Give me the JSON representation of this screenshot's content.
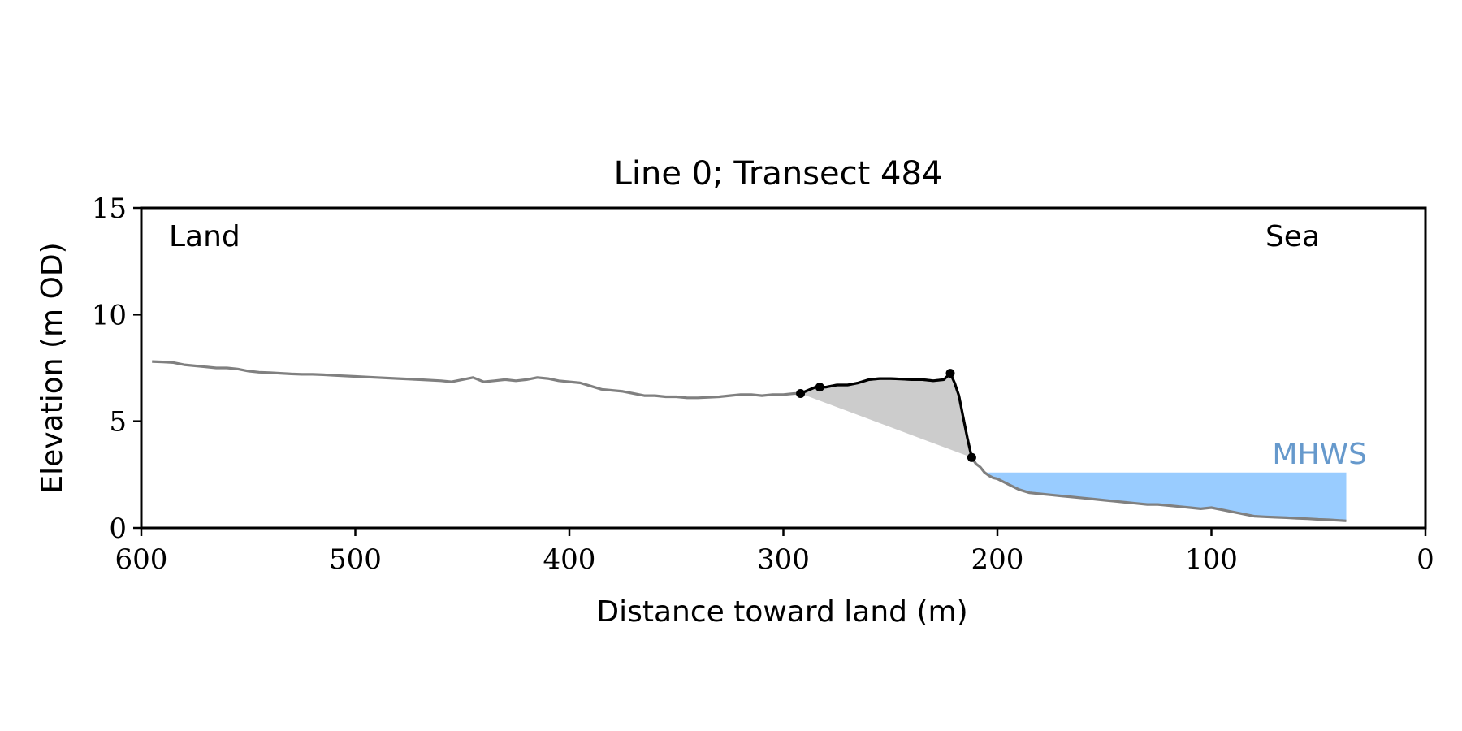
{
  "chart_data": {
    "type": "line",
    "title": "Line 0; Transect 484",
    "xlabel": "Distance toward land (m)",
    "ylabel": "Elevation (m OD)",
    "xlim": [
      600,
      0
    ],
    "ylim": [
      0,
      15
    ],
    "xticks": [
      600,
      500,
      400,
      300,
      200,
      100,
      0
    ],
    "yticks": [
      0,
      5,
      10,
      15
    ],
    "grid": false,
    "legend": "none",
    "annotations": {
      "land": "Land",
      "sea": "Sea",
      "mhws": "MHWS"
    },
    "mhws": {
      "level": 2.6,
      "x_from": 205,
      "x_to": 37
    },
    "colors": {
      "profile": "#808080",
      "dune": "#000000",
      "dune_fill": "#cccccc",
      "water": "#99ccff",
      "mhws_text": "#6699cc",
      "axes": "#000000"
    },
    "series": [
      {
        "role": "profile",
        "x": [
          595,
          590,
          585,
          580,
          575,
          570,
          565,
          560,
          555,
          550,
          545,
          540,
          535,
          530,
          525,
          520,
          515,
          510,
          500,
          490,
          480,
          470,
          460,
          455,
          450,
          445,
          440,
          435,
          430,
          425,
          420,
          415,
          410,
          405,
          400,
          395,
          390,
          385,
          380,
          375,
          370,
          365,
          360,
          355,
          350,
          345,
          340,
          335,
          330,
          325,
          320,
          315,
          310,
          305,
          300,
          295,
          292,
          285,
          280,
          275,
          270,
          265,
          260,
          255,
          250,
          245,
          240,
          235,
          230,
          225,
          222,
          220,
          218,
          216,
          214,
          212,
          210,
          208,
          206,
          204,
          202,
          200,
          198,
          195,
          190,
          185,
          180,
          175,
          170,
          165,
          160,
          155,
          150,
          145,
          140,
          135,
          130,
          125,
          120,
          115,
          110,
          105,
          100,
          95,
          90,
          85,
          80,
          75,
          70,
          65,
          60,
          55,
          50,
          45,
          40,
          37
        ],
        "y": [
          7.8,
          7.78,
          7.75,
          7.65,
          7.6,
          7.55,
          7.5,
          7.5,
          7.45,
          7.35,
          7.3,
          7.28,
          7.25,
          7.22,
          7.2,
          7.2,
          7.18,
          7.15,
          7.1,
          7.05,
          7.0,
          6.95,
          6.9,
          6.85,
          6.95,
          7.05,
          6.85,
          6.9,
          6.95,
          6.9,
          6.95,
          7.05,
          7.0,
          6.9,
          6.85,
          6.8,
          6.65,
          6.5,
          6.45,
          6.4,
          6.3,
          6.2,
          6.2,
          6.15,
          6.15,
          6.1,
          6.1,
          6.12,
          6.15,
          6.2,
          6.25,
          6.25,
          6.2,
          6.25,
          6.25,
          6.3,
          6.3,
          6.6,
          6.6,
          6.7,
          6.7,
          6.8,
          6.95,
          7.0,
          7.0,
          6.98,
          6.95,
          6.95,
          6.9,
          6.95,
          7.25,
          6.8,
          6.2,
          5.2,
          4.2,
          3.3,
          3.0,
          2.85,
          2.6,
          2.45,
          2.35,
          2.3,
          2.2,
          2.05,
          1.8,
          1.65,
          1.6,
          1.55,
          1.5,
          1.45,
          1.4,
          1.35,
          1.3,
          1.25,
          1.2,
          1.15,
          1.1,
          1.1,
          1.05,
          1.0,
          0.95,
          0.9,
          0.95,
          0.85,
          0.75,
          0.65,
          0.55,
          0.52,
          0.5,
          0.48,
          0.45,
          0.43,
          0.4,
          0.38,
          0.35,
          0.33
        ]
      },
      {
        "role": "dune",
        "x": [
          292,
          285,
          280,
          275,
          270,
          265,
          260,
          255,
          250,
          245,
          240,
          235,
          230,
          225,
          222,
          220,
          218,
          216,
          214,
          212
        ],
        "y": [
          6.3,
          6.6,
          6.6,
          6.7,
          6.7,
          6.8,
          6.95,
          7.0,
          7.0,
          6.98,
          6.95,
          6.95,
          6.9,
          6.95,
          7.25,
          6.8,
          6.2,
          5.2,
          4.2,
          3.3
        ]
      }
    ],
    "markers": {
      "x": [
        292,
        283,
        222,
        212
      ],
      "y": [
        6.3,
        6.6,
        7.25,
        3.3
      ]
    }
  }
}
